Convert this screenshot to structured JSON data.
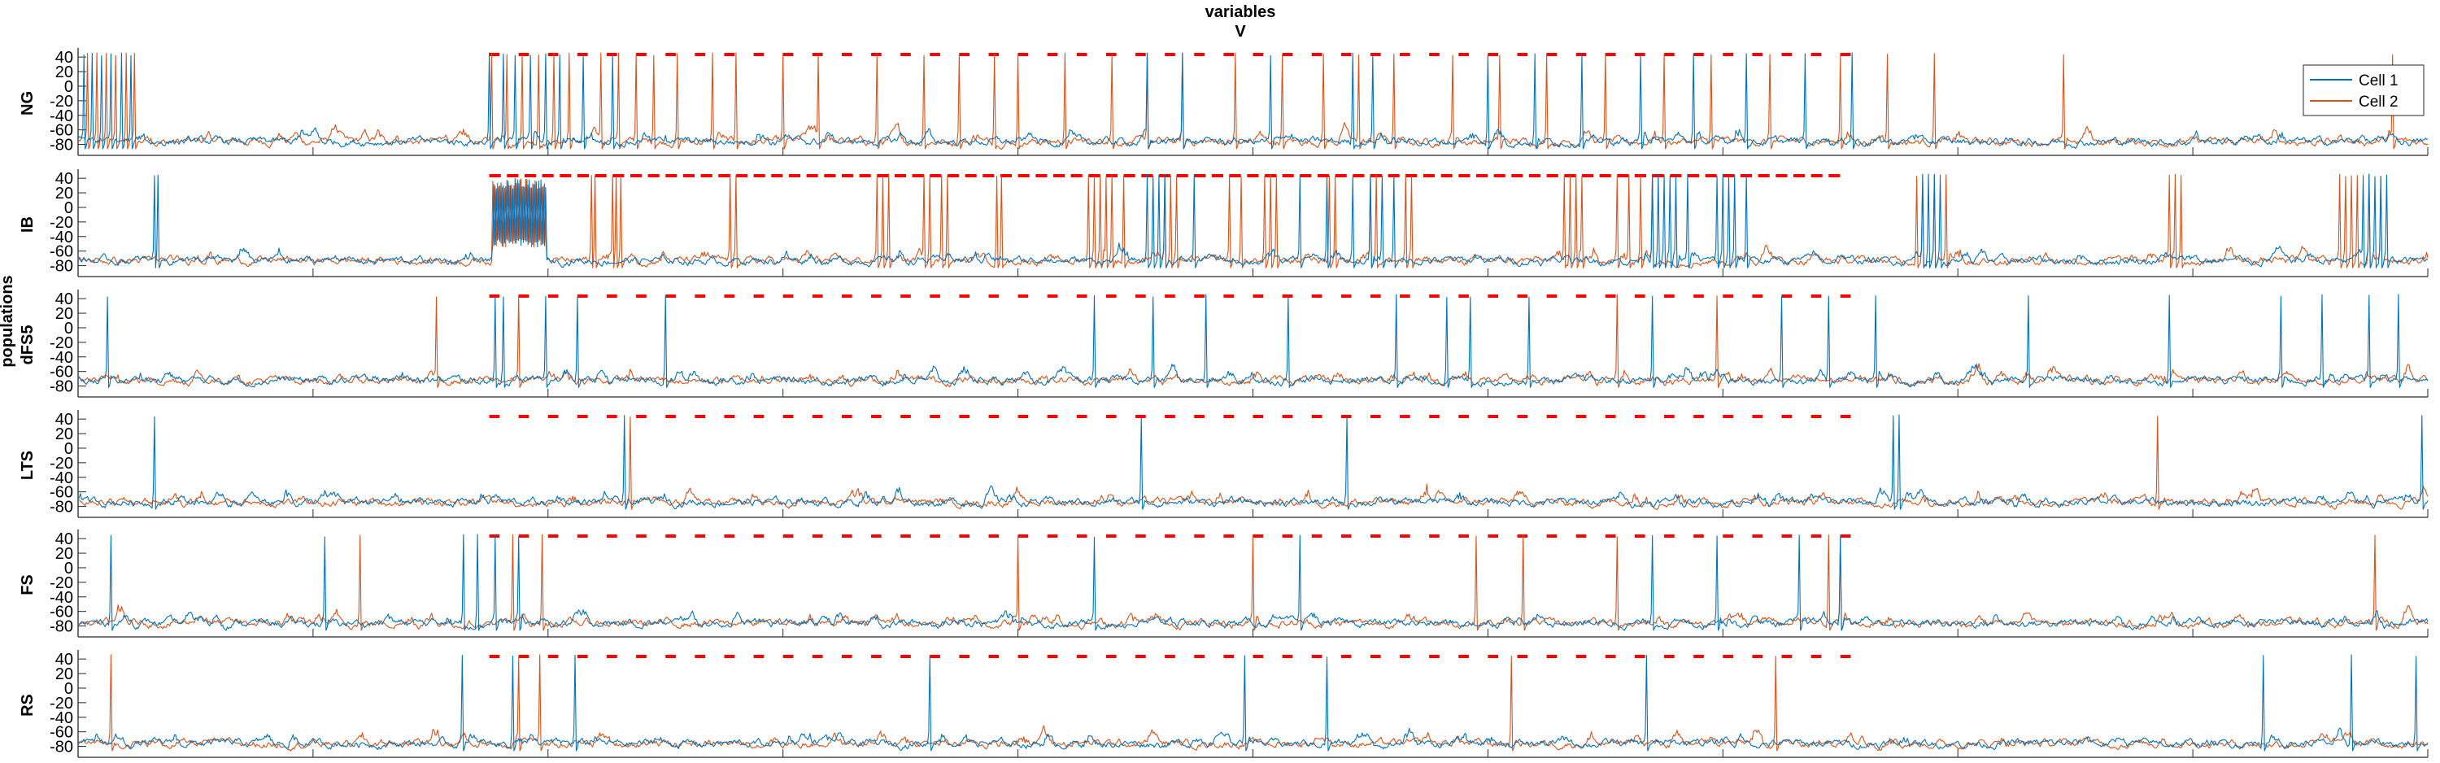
{
  "chart_data": {
    "type": "line",
    "title": "variables",
    "subtitle": "V",
    "ylabel": "populations",
    "xlim": [
      0,
      2000
    ],
    "ylim": [
      -95,
      48
    ],
    "x_ticks": [
      0,
      200,
      400,
      600,
      800,
      1000,
      1200,
      1400,
      1600,
      1800,
      2000
    ],
    "y_ticks": [
      40,
      20,
      0,
      -20,
      -40,
      -60,
      -80
    ],
    "grid": false,
    "legend_position": "top-right",
    "legend": [
      {
        "name": "Cell 1",
        "color": "#0072BD"
      },
      {
        "name": "Cell 2",
        "color": "#D95319"
      }
    ],
    "series_colors": {
      "cell1": "#0072BD",
      "cell2": "#D95319",
      "marker": "#ff0000"
    },
    "panels": [
      {
        "population": "NG",
        "baseline": -76,
        "marker_range": [
          350,
          1510
        ],
        "marker_step": 25,
        "cell1_spikes": [
          5,
          12,
          20,
          28,
          37,
          45,
          350,
          362,
          372,
          385,
          398,
          410,
          430,
          455,
          910,
          940,
          1015,
          1085,
          1102,
          1200,
          1240,
          1280,
          1330,
          1375,
          1420,
          1470,
          1510
        ],
        "cell2_spikes": [
          8,
          16,
          24,
          32,
          41,
          48,
          352,
          365,
          378,
          392,
          405,
          418,
          445,
          460,
          475,
          490,
          510,
          540,
          560,
          600,
          630,
          680,
          720,
          750,
          780,
          800,
          840,
          880,
          910,
          940,
          985,
          1025,
          1060,
          1090,
          1120,
          1170,
          1210,
          1250,
          1300,
          1350,
          1390,
          1440,
          1500,
          1540,
          1580,
          1690,
          1970
        ]
      },
      {
        "population": "IB",
        "baseline": -73,
        "marker_range": [
          350,
          1490
        ],
        "marker_step": 15,
        "burst_region": [
          353,
          398
        ],
        "cell1_spikes": [
          65,
          68,
          910,
          915,
          920,
          925,
          950,
          1040,
          1063,
          1085,
          1100,
          1110,
          1120,
          1340,
          1345,
          1350,
          1355,
          1360,
          1370,
          1395,
          1400,
          1405,
          1410,
          1420,
          1570,
          1575,
          1580,
          1585,
          1945,
          1950,
          1955,
          1960,
          1965
        ],
        "cell2_spikes": [
          437,
          440,
          455,
          458,
          462,
          555,
          560,
          680,
          685,
          690,
          720,
          725,
          735,
          740,
          782,
          786,
          860,
          865,
          870,
          875,
          880,
          890,
          925,
          930,
          935,
          980,
          990,
          1010,
          1015,
          1020,
          1065,
          1070,
          1100,
          1105,
          1130,
          1135,
          1265,
          1270,
          1275,
          1280,
          1310,
          1320,
          1330,
          1340,
          1565,
          1570,
          1580,
          1590,
          1780,
          1785,
          1790,
          1925,
          1930,
          1935,
          1940,
          1950,
          1960
        ]
      },
      {
        "population": "dFS5",
        "baseline": -72,
        "marker_range": [
          350,
          1510
        ],
        "marker_step": 25,
        "cell1_spikes": [
          25,
          355,
          362,
          398,
          425,
          500,
          865,
          915,
          960,
          1030,
          1122,
          1165,
          1185,
          1235,
          1340,
          1450,
          1490,
          1530,
          1660,
          1780,
          1875,
          1910,
          1950,
          1975
        ],
        "cell2_spikes": [
          305,
          375,
          1310,
          1395
        ]
      },
      {
        "population": "LTS",
        "baseline": -74,
        "marker_range": [
          350,
          1510
        ],
        "marker_step": 25,
        "cell1_spikes": [
          65,
          465,
          905,
          1080,
          1545,
          1550,
          1995
        ],
        "cell2_spikes": [
          470,
          1770
        ]
      },
      {
        "population": "FS",
        "baseline": -76,
        "marker_range": [
          350,
          1510
        ],
        "marker_step": 25,
        "cell1_spikes": [
          28,
          210,
          328,
          340,
          355,
          375,
          865,
          1040,
          1340,
          1395,
          1465,
          1500
        ],
        "cell2_spikes": [
          240,
          370,
          395,
          800,
          1000,
          1190,
          1230,
          1310,
          1490,
          1500,
          1955
        ]
      },
      {
        "population": "RS",
        "baseline": -76,
        "marker_range": [
          350,
          1510
        ],
        "marker_step": 25,
        "cell1_spikes": [
          327,
          370,
          423,
          725,
          993,
          1063,
          1335,
          1860,
          1935,
          1990
        ],
        "cell2_spikes": [
          28,
          375,
          393,
          1220,
          1445
        ]
      }
    ]
  }
}
